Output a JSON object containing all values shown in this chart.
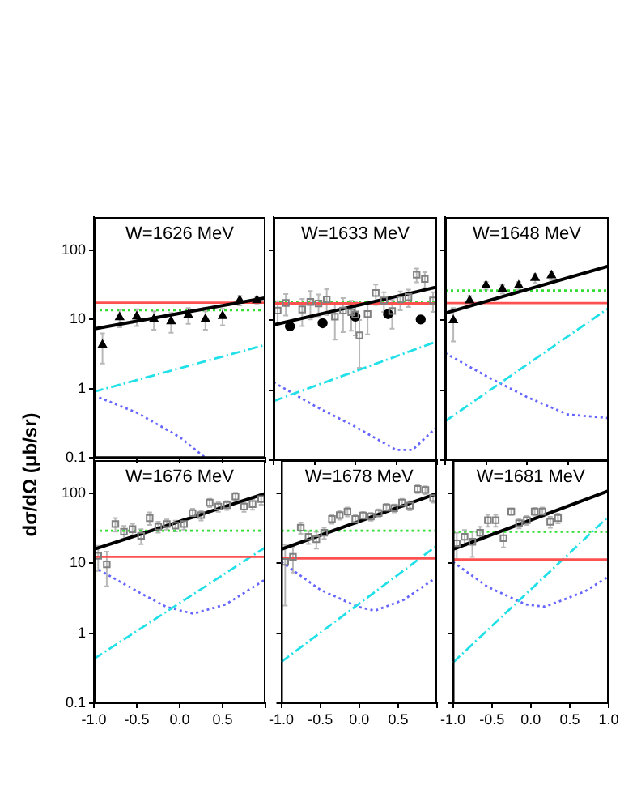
{
  "chart_data": [
    {
      "type": "scatter",
      "title": "W=1626 MeV",
      "ylabel": "dσ/dΩ  (μb/sr)",
      "log": "y",
      "grid": false,
      "tick_labels": "y",
      "xlim": [
        -1,
        1
      ],
      "xticks": [
        {
          "value": -1,
          "label": null
        },
        {
          "value": -0.5,
          "label": null
        },
        {
          "value": 0,
          "label": null
        },
        {
          "value": 0.5,
          "label": null
        },
        {
          "value": 1,
          "label": null
        }
      ],
      "ylim": [
        0.1,
        300
      ],
      "yticks": [
        0.1,
        1,
        10,
        100
      ],
      "series": [
        {
          "marker": "triangle",
          "color": "#000000",
          "x": [
            -0.9,
            -0.7,
            -0.5,
            -0.3,
            -0.1,
            0.1,
            0.3,
            0.5,
            0.7,
            0.9
          ],
          "values": [
            4.3,
            10.7,
            11.0,
            10.1,
            9.4,
            11.6,
            10.1,
            11.2,
            18.9,
            18.9
          ],
          "errors": [
            2,
            3,
            3,
            3,
            3,
            3,
            3,
            3,
            3,
            2
          ]
        },
        {
          "type": "line",
          "marker": "none",
          "line_style": "solid",
          "color": "#000000",
          "x": [
            -1,
            1
          ],
          "values": [
            7.3,
            20.5
          ]
        },
        {
          "type": "line",
          "marker": "none",
          "line_style": "solid",
          "color": "#ff5050",
          "x": [
            -1,
            1
          ],
          "values": [
            17.4,
            17.4
          ]
        },
        {
          "type": "line",
          "marker": "none",
          "line_style": "dotted",
          "color": "#33dd33",
          "x": [
            -1,
            1
          ],
          "values": [
            13.6,
            13.6
          ]
        },
        {
          "type": "line",
          "marker": "none",
          "line_style": "dashed",
          "color": "#22e0e8",
          "x": [
            -1,
            1
          ],
          "values": [
            0.9,
            4.3
          ]
        },
        {
          "type": "line",
          "marker": "none",
          "line_style": "dotted",
          "color": "#6666ff",
          "x": [
            -1,
            -0.5,
            0,
            0.3
          ],
          "values": [
            0.8,
            0.45,
            0.2,
            0.1
          ]
        }
      ]
    },
    {
      "type": "scatter",
      "title": "W=1633 MeV",
      "log": "y",
      "grid": false,
      "tick_labels": false,
      "xlim": [
        -1,
        1
      ],
      "xticks": [
        {
          "value": -1,
          "label": null
        },
        {
          "value": -0.5,
          "label": null
        },
        {
          "value": 0,
          "label": null
        },
        {
          "value": 0.5,
          "label": null
        },
        {
          "value": 1,
          "label": null
        }
      ],
      "ylim": [
        0.1,
        300
      ],
      "yticks": [
        0.1,
        1,
        10,
        100
      ],
      "series": [
        {
          "marker": "square",
          "color": "#808080",
          "x": [
            -0.95,
            -0.85,
            -0.65,
            -0.55,
            -0.45,
            -0.35,
            -0.25,
            -0.15,
            -0.05,
            0.0,
            0.05,
            0.15,
            0.25,
            0.35,
            0.45,
            0.55,
            0.65,
            0.75,
            0.85,
            0.95
          ],
          "values": [
            13.8,
            17.7,
            14.3,
            18.3,
            17.4,
            19.9,
            11.3,
            13.8,
            13.1,
            12.1,
            6.1,
            12.3,
            24.6,
            19.2,
            13.6,
            19.9,
            21.5,
            45,
            39,
            19.2
          ],
          "errors": [
            5,
            6,
            6,
            8,
            6,
            8,
            6,
            7,
            6,
            6,
            4,
            6,
            8,
            6,
            6,
            6,
            6,
            10,
            10,
            6
          ]
        },
        {
          "marker": "circle",
          "color": "#000000",
          "x": [
            -0.8,
            -0.4,
            0,
            0.4,
            0.8
          ],
          "values": [
            8.2,
            9.1,
            11.3,
            12.3,
            10.3
          ]
        },
        {
          "type": "line",
          "marker": "none",
          "line_style": "solid",
          "color": "#000000",
          "x": [
            -1,
            1
          ],
          "values": [
            8.6,
            30
          ]
        },
        {
          "type": "line",
          "marker": "none",
          "line_style": "solid",
          "color": "#ff5050",
          "x": [
            -1,
            1
          ],
          "values": [
            17.5,
            17.5
          ]
        },
        {
          "type": "line",
          "marker": "none",
          "line_style": "dotted",
          "color": "#33dd33",
          "x": [
            -1,
            1
          ],
          "values": [
            18.2,
            18.2
          ]
        },
        {
          "type": "line",
          "marker": "none",
          "line_style": "dashed",
          "color": "#22e0e8",
          "x": [
            -1,
            1
          ],
          "values": [
            0.7,
            5
          ]
        },
        {
          "type": "line",
          "marker": "none",
          "line_style": "dotted",
          "color": "#6666ff",
          "x": [
            -1,
            -0.5,
            0,
            0.5,
            0.7,
            1
          ],
          "values": [
            1.3,
            0.6,
            0.3,
            0.14,
            0.14,
            0.3
          ]
        }
      ]
    },
    {
      "type": "scatter",
      "title": "W=1648 MeV",
      "log": "y",
      "grid": false,
      "tick_labels": false,
      "xlim": [
        -1,
        1
      ],
      "xticks": [
        {
          "value": -1,
          "label": null
        },
        {
          "value": -0.5,
          "label": null
        },
        {
          "value": 0,
          "label": null
        },
        {
          "value": 0.5,
          "label": null
        },
        {
          "value": 1,
          "label": null
        }
      ],
      "ylim": [
        0.1,
        300
      ],
      "yticks": [
        0.1,
        1,
        10,
        100
      ],
      "series": [
        {
          "marker": "triangle",
          "color": "#000000",
          "x": [
            -0.9,
            -0.7,
            -0.5,
            -0.3,
            -0.1,
            0.1,
            0.3
          ],
          "values": [
            10.0,
            19.2,
            31.5,
            28.1,
            31.5,
            40.4,
            44
          ],
          "errors": [
            5,
            3,
            4,
            4,
            4,
            6,
            6
          ]
        },
        {
          "type": "line",
          "marker": "none",
          "line_style": "solid",
          "color": "#000000",
          "x": [
            -1,
            1
          ],
          "values": [
            12.7,
            60
          ]
        },
        {
          "type": "line",
          "marker": "none",
          "line_style": "solid",
          "color": "#ff5050",
          "x": [
            -1,
            1
          ],
          "values": [
            17.7,
            17.7
          ]
        },
        {
          "type": "line",
          "marker": "none",
          "line_style": "dotted",
          "color": "#33dd33",
          "x": [
            -1,
            1
          ],
          "values": [
            26.7,
            26.7
          ]
        },
        {
          "type": "line",
          "marker": "none",
          "line_style": "dashed",
          "color": "#22e0e8",
          "x": [
            -1,
            1
          ],
          "values": [
            0.36,
            15
          ]
        },
        {
          "type": "line",
          "marker": "none",
          "line_style": "dotted",
          "color": "#6666ff",
          "x": [
            -1,
            -0.5,
            0,
            0.5,
            1
          ],
          "values": [
            3.4,
            1.6,
            0.8,
            0.45,
            0.4
          ]
        }
      ]
    },
    {
      "type": "scatter",
      "title": "W=1676 MeV",
      "log": "y",
      "grid": false,
      "xlim": [
        -1,
        1
      ],
      "xticks": [
        {
          "value": -1,
          "label": "-1.0"
        },
        {
          "value": -0.5,
          "label": "-0.5"
        },
        {
          "value": 0,
          "label": "0.0"
        },
        {
          "value": 0.5,
          "label": "0.5"
        },
        {
          "value": 1,
          "label": null
        }
      ],
      "ylim": [
        0.1,
        300
      ],
      "yticks": [
        0.1,
        1,
        10,
        100
      ],
      "series": [
        {
          "marker": "square",
          "color": "#808080",
          "x": [
            -0.95,
            -0.85,
            -0.75,
            -0.65,
            -0.55,
            -0.45,
            -0.35,
            -0.25,
            -0.15,
            -0.05,
            0.05,
            0.15,
            0.25,
            0.35,
            0.45,
            0.55,
            0.65,
            0.75,
            0.85,
            0.95
          ],
          "values": [
            12.8,
            9.7,
            36.5,
            28.4,
            30.8,
            24.8,
            44.5,
            33.5,
            36.5,
            34.7,
            36.5,
            52.4,
            49.1,
            74,
            64.9,
            68.2,
            90.6,
            64.9,
            70.6,
            83.2
          ],
          "errors": [
            5,
            5,
            8,
            6,
            6,
            6,
            9,
            6,
            6,
            6,
            6,
            8,
            8,
            10,
            10,
            10,
            12,
            10,
            12,
            14
          ]
        },
        {
          "type": "line",
          "marker": "none",
          "line_style": "solid",
          "color": "#000000",
          "x": [
            -1,
            1
          ],
          "values": [
            15.9,
            100
          ]
        },
        {
          "type": "line",
          "marker": "none",
          "line_style": "solid",
          "color": "#ff5050",
          "x": [
            -1,
            1
          ],
          "values": [
            12.4,
            12.4
          ]
        },
        {
          "type": "line",
          "marker": "none",
          "line_style": "dotted",
          "color": "#33dd33",
          "x": [
            -1,
            1
          ],
          "values": [
            29.3,
            29.3
          ]
        },
        {
          "type": "line",
          "marker": "none",
          "line_style": "dashed",
          "color": "#22e0e8",
          "x": [
            -1,
            1
          ],
          "values": [
            0.43,
            17
          ]
        },
        {
          "type": "line",
          "marker": "none",
          "line_style": "dotted",
          "color": "#6666ff",
          "x": [
            -1,
            -0.7,
            -0.43,
            -0.16,
            0.16,
            0.54,
            1
          ],
          "values": [
            8.9,
            5.5,
            3.6,
            2.4,
            1.9,
            2.6,
            5.9
          ]
        }
      ]
    },
    {
      "type": "scatter",
      "title": "W=1678 MeV",
      "log": "y",
      "grid": false,
      "tick_labels": "x",
      "xlim": [
        -1,
        1
      ],
      "xticks": [
        {
          "value": -1,
          "label": "-1.0"
        },
        {
          "value": -0.5,
          "label": "-0.5"
        },
        {
          "value": 0,
          "label": "0.0"
        },
        {
          "value": 0.5,
          "label": "0.5"
        },
        {
          "value": 1,
          "label": null
        }
      ],
      "ylim": [
        0.1,
        300
      ],
      "yticks": [
        0.1,
        1,
        10,
        100
      ],
      "series": [
        {
          "marker": "square",
          "color": "#808080",
          "x": [
            -0.95,
            -0.85,
            -0.75,
            -0.65,
            -0.55,
            -0.45,
            -0.35,
            -0.25,
            -0.15,
            -0.05,
            0.05,
            0.15,
            0.25,
            0.35,
            0.45,
            0.55,
            0.65,
            0.75,
            0.85,
            0.95
          ],
          "values": [
            10.5,
            12.4,
            32.4,
            24,
            22.2,
            27.4,
            43,
            49.1,
            55.1,
            43,
            48.2,
            46.8,
            52.4,
            63,
            61.7,
            74,
            67.2,
            116,
            112,
            86
          ],
          "errors": [
            8,
            5,
            6,
            5,
            6,
            5,
            6,
            7,
            8,
            6,
            6,
            6,
            7,
            8,
            8,
            10,
            10,
            15,
            15,
            12
          ]
        },
        {
          "type": "line",
          "marker": "none",
          "line_style": "solid",
          "color": "#000000",
          "x": [
            -1,
            1
          ],
          "values": [
            15.9,
            100
          ]
        },
        {
          "type": "line",
          "marker": "none",
          "line_style": "solid",
          "color": "#ff5050",
          "x": [
            -1,
            1
          ],
          "values": [
            11.8,
            11.8
          ]
        },
        {
          "type": "line",
          "marker": "none",
          "line_style": "dotted",
          "color": "#33dd33",
          "x": [
            -1,
            1
          ],
          "values": [
            29.3,
            29.3
          ]
        },
        {
          "type": "line",
          "marker": "none",
          "line_style": "dashed",
          "color": "#22e0e8",
          "x": [
            -1,
            1
          ],
          "values": [
            0.39,
            18
          ]
        },
        {
          "type": "line",
          "marker": "none",
          "line_style": "dotted",
          "color": "#6666ff",
          "x": [
            -1,
            -0.5,
            -0.02,
            0.2,
            0.57,
            1
          ],
          "values": [
            10.5,
            4.2,
            2.4,
            2.1,
            3.0,
            6.4
          ]
        }
      ]
    },
    {
      "type": "scatter",
      "title": "W=1681 MeV",
      "log": "y",
      "grid": false,
      "tick_labels": "x",
      "xlim": [
        -1,
        1
      ],
      "xticks": [
        {
          "value": -1,
          "label": "-1.0"
        },
        {
          "value": -0.5,
          "label": "-0.5"
        },
        {
          "value": 0,
          "label": "0.0"
        },
        {
          "value": 0.5,
          "label": "0.5"
        },
        {
          "value": 1,
          "label": "1.0"
        }
      ],
      "ylim": [
        0.1,
        300
      ],
      "yticks": [
        0.1,
        1,
        10,
        100
      ],
      "series": [
        {
          "marker": "square",
          "color": "#808080",
          "x": [
            -0.95,
            -0.85,
            -0.75,
            -0.65,
            -0.55,
            -0.45,
            -0.35,
            -0.25,
            -0.15,
            -0.05,
            0.05,
            0.15,
            0.25,
            0.35
          ],
          "values": [
            19.4,
            24,
            20.4,
            27.4,
            41.5,
            41.5,
            22.9,
            55.1,
            37.6,
            41.5,
            55.1,
            55.1,
            39.4,
            44.5
          ],
          "errors": [
            8,
            6,
            8,
            6,
            8,
            8,
            6,
            6,
            6,
            6,
            7,
            8,
            7,
            7
          ]
        },
        {
          "type": "line",
          "marker": "none",
          "line_style": "solid",
          "color": "#000000",
          "x": [
            -1,
            1
          ],
          "values": [
            15.9,
            109
          ]
        },
        {
          "type": "line",
          "marker": "none",
          "line_style": "solid",
          "color": "#ff5050",
          "x": [
            -1,
            1
          ],
          "values": [
            11.4,
            11.4
          ]
        },
        {
          "type": "line",
          "marker": "none",
          "line_style": "dotted",
          "color": "#33dd33",
          "x": [
            -1,
            1
          ],
          "values": [
            28.4,
            28.4
          ]
        },
        {
          "type": "line",
          "marker": "none",
          "line_style": "dashed",
          "color": "#22e0e8",
          "x": [
            -1,
            1
          ],
          "values": [
            0.38,
            47
          ]
        },
        {
          "type": "line",
          "marker": "none",
          "line_style": "dotted",
          "color": "#6666ff",
          "x": [
            -1,
            -0.55,
            -0.07,
            0.17,
            0.38,
            0.7,
            1
          ],
          "values": [
            10.5,
            4.6,
            2.6,
            2.4,
            2.9,
            4,
            6.5
          ]
        }
      ]
    }
  ]
}
